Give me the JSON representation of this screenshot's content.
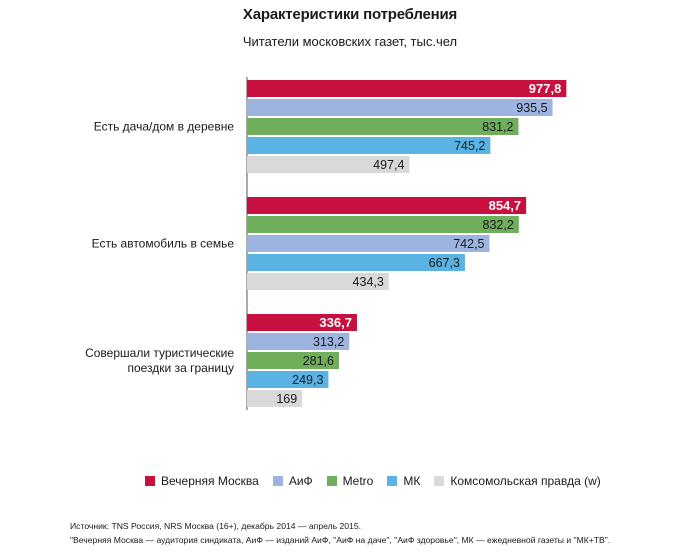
{
  "chart_data": {
    "type": "bar",
    "orientation": "horizontal",
    "title": "Характеристики потребления",
    "subtitle": "Читатели московских газет, тыс.чел",
    "categories": [
      {
        "label_lines": [
          "Есть дача/дом в деревне"
        ]
      },
      {
        "label_lines": [
          "Есть автомобиль в семье"
        ]
      },
      {
        "label_lines": [
          "Совершали туристические",
          "поездки за границу"
        ]
      }
    ],
    "series": [
      {
        "name": "Вечерняя Москва",
        "color": "#c8103e",
        "values": [
          977.8,
          854.7,
          336.7
        ],
        "labels": [
          "977,8",
          "854,7",
          "336,7"
        ]
      },
      {
        "name": "АиФ",
        "color": "#9db3e0",
        "values": [
          935.5,
          742.5,
          313.2
        ],
        "labels": [
          "935,5",
          "742,5",
          "313,2"
        ]
      },
      {
        "name": "Metro",
        "color": "#6fae5a",
        "values": [
          831.2,
          832.2,
          281.6
        ],
        "labels": [
          "831,2",
          "832,2",
          "281,6"
        ]
      },
      {
        "name": "МК",
        "color": "#5bb3e4",
        "values": [
          745.2,
          667.3,
          249.3
        ],
        "labels": [
          "745,2",
          "667,3",
          "249,3"
        ]
      },
      {
        "name": "Комсомольская правда (w)",
        "color": "#d9d9d9",
        "values": [
          497.4,
          434.3,
          169
        ],
        "labels": [
          "497,4",
          "434,3",
          "169"
        ]
      }
    ],
    "bar_order": [
      [
        0,
        1,
        2,
        3,
        4
      ],
      [
        0,
        2,
        1,
        3,
        4
      ],
      [
        0,
        1,
        2,
        3,
        4
      ]
    ],
    "xlim": [
      0,
      1000
    ],
    "grid": false,
    "legend_position": "bottom"
  },
  "legend": {
    "items": [
      {
        "name": "Вечерняя Москва",
        "color": "#c8103e"
      },
      {
        "name": "АиФ",
        "color": "#9db3e0"
      },
      {
        "name": "Metro",
        "color": "#6fae5a"
      },
      {
        "name": "МК",
        "color": "#5bb3e4"
      },
      {
        "name": "Комсомольская правда (w)",
        "color": "#d9d9d9"
      }
    ]
  },
  "source": {
    "line1": "Источник: TNS Россия,  NRS Москва (16+), декабрь 2014 — апрель 2015.",
    "line2": "\"Вечерняя Москва — аудитория синдиката, АиФ — изданий АиФ, \"АиФ на даче\", \"АиФ здоровье\", МК — ежедневной газеты и \"МК+ТВ\"."
  }
}
